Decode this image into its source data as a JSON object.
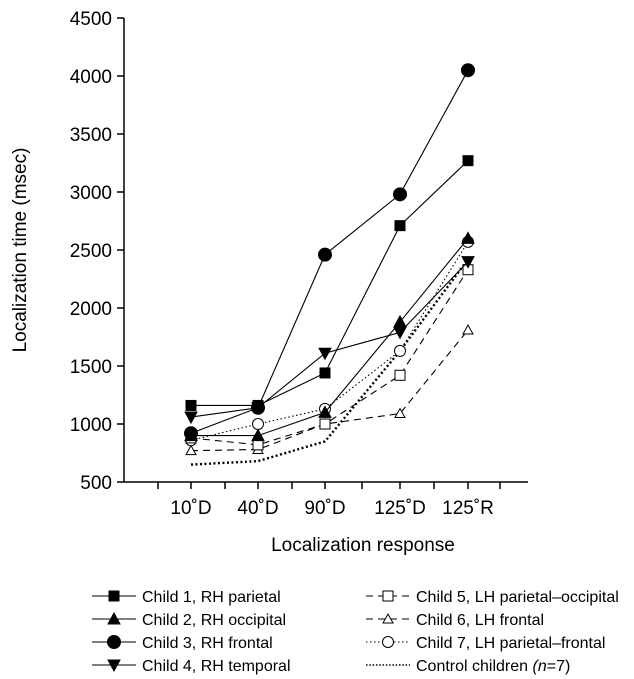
{
  "chart_data": {
    "type": "line",
    "title": "",
    "xlabel": "Localization response",
    "ylabel": "Localization time (msec)",
    "categories": [
      "10˚D",
      "40˚D",
      "90˚D",
      "125˚D",
      "125˚R"
    ],
    "ylim": [
      500,
      4500
    ],
    "yticks": [
      500,
      1000,
      1500,
      2000,
      2500,
      3000,
      3500,
      4000,
      4500
    ],
    "yticks_text": [
      "500",
      "1000",
      "1500",
      "2000",
      "2500",
      "3000",
      "3500",
      "4000",
      "4500"
    ],
    "grid": false,
    "legend_position": "bottom",
    "series": [
      {
        "id": "child1",
        "name_prefix": "Child 1, RH parietal",
        "name_italic": "",
        "name_suffix": "",
        "values": [
          1160,
          1160,
          1440,
          2710,
          3270
        ],
        "marker": "square-filled",
        "line": "solid"
      },
      {
        "id": "child2",
        "name_prefix": "Child 2, RH occipital",
        "name_italic": "",
        "name_suffix": "",
        "values": [
          900,
          900,
          1100,
          1880,
          2600
        ],
        "marker": "triangle-up-filled",
        "line": "solid"
      },
      {
        "id": "child3",
        "name_prefix": "Child 3, RH frontal",
        "name_italic": "",
        "name_suffix": "",
        "values": [
          920,
          1140,
          2460,
          2980,
          4050
        ],
        "marker": "circle-filled",
        "line": "solid"
      },
      {
        "id": "child4",
        "name_prefix": "Child 4, RH temporal",
        "name_italic": "",
        "name_suffix": "",
        "values": [
          1060,
          1140,
          1610,
          1790,
          2400
        ],
        "marker": "triangle-down-filled",
        "line": "solid"
      },
      {
        "id": "child5",
        "name_prefix": "Child 5, LH parietal–occipital",
        "name_italic": "",
        "name_suffix": "",
        "values": [
          880,
          820,
          1000,
          1420,
          2330
        ],
        "marker": "square-open",
        "line": "dashed"
      },
      {
        "id": "child6",
        "name_prefix": "Child 6, LH frontal",
        "name_italic": "",
        "name_suffix": "",
        "values": [
          770,
          780,
          1000,
          1090,
          1810
        ],
        "marker": "triangle-up-open",
        "line": "dashed"
      },
      {
        "id": "child7",
        "name_prefix": "Child 7, LH parietal–frontal",
        "name_italic": "",
        "name_suffix": "",
        "values": [
          860,
          1000,
          1130,
          1630,
          2570
        ],
        "marker": "circle-open",
        "line": "dotted-fine"
      },
      {
        "id": "control",
        "name_prefix": "Control children ",
        "name_italic": "(n",
        "name_suffix": "=7)",
        "values": [
          650,
          680,
          850,
          1630,
          2420
        ],
        "marker": "none",
        "line": "dotted-bold"
      }
    ]
  }
}
